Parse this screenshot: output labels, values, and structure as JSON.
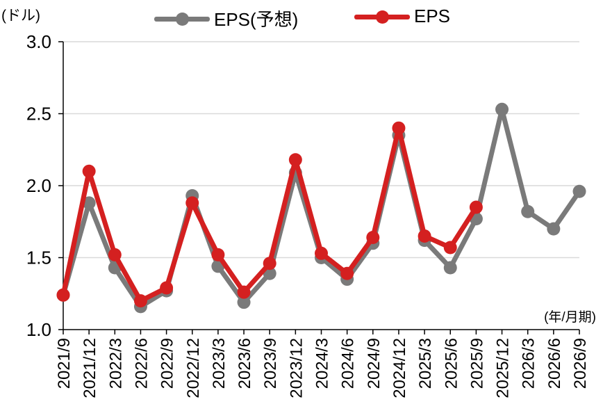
{
  "unit_label": "(ドル)",
  "period_label": "(年/月期)",
  "legend": {
    "forecast": "EPS(予想)",
    "actual": "EPS"
  },
  "colors": {
    "forecast": "#7a7a7a",
    "actual": "#d42020",
    "grid": "#d9d9d9",
    "axis": "#000000"
  },
  "chart_data": {
    "type": "line",
    "title": "",
    "xlabel": "(年/月期)",
    "ylabel": "(ドル)",
    "ylim": [
      1.0,
      3.0
    ],
    "yticks": [
      "1.0",
      "1.5",
      "2.0",
      "2.5",
      "3.0"
    ],
    "grid": true,
    "legend_position": "top",
    "categories": [
      "2021/9",
      "2021/12",
      "2022/3",
      "2022/6",
      "2022/9",
      "2022/12",
      "2023/3",
      "2023/6",
      "2023/9",
      "2023/12",
      "2024/3",
      "2024/6",
      "2024/9",
      "2024/12",
      "2025/3",
      "2025/6",
      "2025/9",
      "2025/12",
      "2026/3",
      "2026/6",
      "2026/9"
    ],
    "series": [
      {
        "name": "EPS(予想)",
        "key": "forecast",
        "values": [
          1.24,
          1.88,
          1.43,
          1.16,
          1.27,
          1.93,
          1.44,
          1.19,
          1.39,
          2.09,
          1.5,
          1.35,
          1.6,
          2.35,
          1.62,
          1.43,
          1.77,
          2.53,
          1.82,
          1.7,
          1.96
        ]
      },
      {
        "name": "EPS",
        "key": "actual",
        "values": [
          1.24,
          2.1,
          1.52,
          1.2,
          1.29,
          1.88,
          1.52,
          1.26,
          1.46,
          2.18,
          1.53,
          1.39,
          1.64,
          2.4,
          1.65,
          1.57,
          1.85,
          null,
          null,
          null,
          null
        ]
      }
    ]
  }
}
